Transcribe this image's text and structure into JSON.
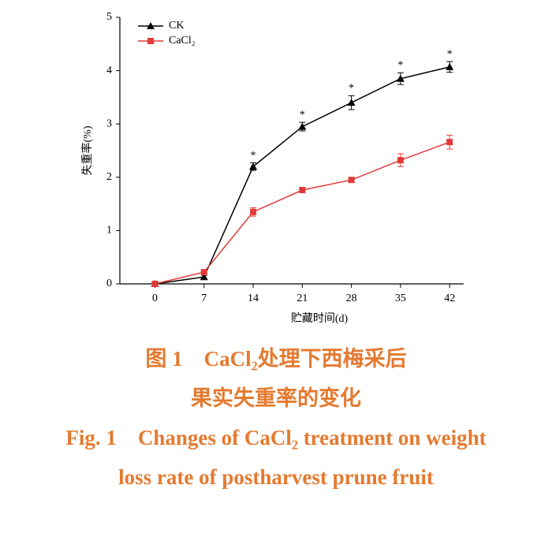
{
  "chart_data": {
    "type": "line",
    "x_label": "贮藏时间(d)",
    "y_label": "失重率(%)",
    "x": [
      0,
      7,
      14,
      21,
      28,
      35,
      42
    ],
    "series": [
      {
        "name": "CK",
        "color": "#000000",
        "marker": "triangle",
        "values": [
          0,
          0.13,
          2.2,
          2.95,
          3.4,
          3.85,
          4.07
        ],
        "errors": [
          0.02,
          0.03,
          0.07,
          0.08,
          0.13,
          0.11,
          0.1
        ]
      },
      {
        "name": "CaCl₂",
        "color": "#e23a3a",
        "marker": "square",
        "values": [
          0,
          0.22,
          1.35,
          1.76,
          1.95,
          2.32,
          2.66
        ],
        "errors": [
          0.02,
          0.03,
          0.08,
          0.05,
          0.04,
          0.12,
          0.13
        ]
      }
    ],
    "annotations": [
      {
        "x": 14,
        "text": "*"
      },
      {
        "x": 21,
        "text": "*"
      },
      {
        "x": 28,
        "text": "*"
      },
      {
        "x": 35,
        "text": "*"
      },
      {
        "x": 42,
        "text": "*"
      }
    ],
    "xlim": [
      -5,
      44
    ],
    "ylim": [
      0,
      5
    ],
    "xticks": [
      0,
      7,
      14,
      21,
      28,
      35,
      42
    ],
    "yticks": [
      0,
      1,
      2,
      3,
      4,
      5
    ],
    "legend": "upper left"
  },
  "caption": [
    "图 1　CaCl₂处理下西梅采后",
    "果实失重率的变化",
    "Fig. 1　Changes of CaCl₂ treatment on weight",
    "loss rate of postharvest prune fruit"
  ]
}
